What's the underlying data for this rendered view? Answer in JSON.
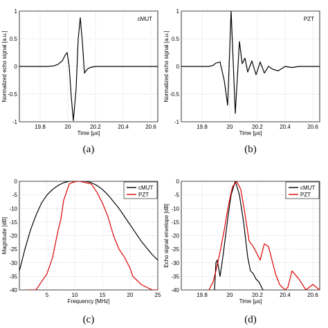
{
  "chart_data": [
    {
      "type": "line",
      "panel_label": "(a)",
      "xlabel": "Time [μs]",
      "ylabel": "Normalized echo signal [a.u.]",
      "xlim": [
        19.65,
        20.65
      ],
      "ylim": [
        -1,
        1
      ],
      "xticks": [
        "19.8",
        "20",
        "20.2",
        "20.4",
        "20.6"
      ],
      "yticks": [
        "-1",
        "-0.5",
        "0",
        "0.5",
        "1"
      ],
      "grid": true,
      "series": [
        {
          "name": "cMUT",
          "color": "#000000",
          "x": [
            19.65,
            19.85,
            19.9,
            19.93,
            19.96,
            19.98,
            19.995,
            20.01,
            20.025,
            20.04,
            20.06,
            20.075,
            20.09,
            20.105,
            20.12,
            20.14,
            20.16,
            20.2,
            20.3,
            20.65
          ],
          "y": [
            0,
            0,
            0.01,
            0.04,
            0.1,
            0.2,
            0.25,
            0.0,
            -0.55,
            -0.98,
            -0.4,
            0.5,
            0.88,
            0.45,
            -0.12,
            -0.05,
            -0.02,
            0.0,
            0.0,
            0.0
          ]
        }
      ]
    },
    {
      "type": "line",
      "panel_label": "(b)",
      "xlabel": "Time [μs]",
      "ylabel": "Normalized echo signal [a.u.]",
      "xlim": [
        19.65,
        20.65
      ],
      "ylim": [
        -1,
        1
      ],
      "xticks": [
        "19.8",
        "20",
        "20.2",
        "20.4",
        "20.6"
      ],
      "yticks": [
        "-1",
        "-0.5",
        "0",
        "0.5",
        "1"
      ],
      "grid": true,
      "series": [
        {
          "name": "PZT",
          "color": "#000000",
          "x": [
            19.65,
            19.85,
            19.88,
            19.9,
            19.93,
            19.96,
            19.985,
            20.01,
            20.04,
            20.07,
            20.09,
            20.11,
            20.13,
            20.16,
            20.19,
            20.22,
            20.25,
            20.28,
            20.31,
            20.35,
            20.4,
            20.45,
            20.5,
            20.55,
            20.65
          ],
          "y": [
            0,
            0,
            0.02,
            0.06,
            0.08,
            -0.25,
            -0.7,
            1.0,
            -0.85,
            0.45,
            0.05,
            0.15,
            -0.1,
            0.1,
            -0.15,
            0.08,
            -0.12,
            0.0,
            -0.05,
            -0.08,
            0.0,
            -0.02,
            0.0,
            0.0,
            0.0
          ]
        }
      ]
    },
    {
      "type": "line",
      "panel_label": "(c)",
      "xlabel": "Frequency [MHz]",
      "ylabel": "Magnitude [dB]",
      "xlim": [
        0,
        25
      ],
      "ylim": [
        -40,
        0
      ],
      "xticks": [
        "5",
        "10",
        "15",
        "20",
        "25"
      ],
      "yticks": [
        "-40",
        "-35",
        "-30",
        "-25",
        "-20",
        "-15",
        "-10",
        "-5",
        "0"
      ],
      "grid": true,
      "legend": "top-right",
      "series": [
        {
          "name": "cMUT",
          "color": "#000000",
          "x": [
            0,
            1,
            2,
            3,
            4,
            5,
            6,
            7,
            8,
            9,
            10,
            11,
            12,
            13,
            14,
            15,
            16,
            17,
            18,
            19,
            20,
            21,
            22,
            23,
            24,
            25
          ],
          "y": [
            -33,
            -25,
            -18,
            -12.5,
            -8,
            -5,
            -3,
            -1.5,
            -0.5,
            0,
            0,
            0,
            0,
            -0.5,
            -1.5,
            -3,
            -5,
            -7.5,
            -10,
            -13,
            -16,
            -19,
            -22,
            -24.5,
            -27,
            -29
          ]
        },
        {
          "name": "PZT",
          "color": "#dd0000",
          "x": [
            1.5,
            3,
            4,
            5,
            6,
            7,
            7.5,
            8,
            8.5,
            9,
            9.5,
            10,
            10.5,
            11,
            12,
            13,
            14,
            15,
            16,
            17,
            18,
            19,
            20,
            20.5,
            21,
            22,
            23,
            24,
            25
          ],
          "y": [
            -40,
            -40,
            -37,
            -34,
            -28,
            -18,
            -14,
            -7,
            -4,
            -1,
            -0.5,
            -0.2,
            0,
            0,
            -0.5,
            -1,
            -4,
            -8,
            -13,
            -20,
            -25,
            -28,
            -32,
            -35,
            -36,
            -38,
            -39,
            -40,
            -40
          ]
        }
      ]
    },
    {
      "type": "line",
      "panel_label": "(d)",
      "xlabel": "Time [μs]",
      "ylabel": "Echo signal envelope [dB]",
      "xlim": [
        19.65,
        20.65
      ],
      "ylim": [
        -40,
        0
      ],
      "xticks": [
        "19.8",
        "20",
        "20.2",
        "20.4",
        "20.6"
      ],
      "yticks": [
        "-40",
        "-35",
        "-30",
        "-25",
        "-20",
        "-15",
        "-10",
        "-5",
        "0"
      ],
      "grid": true,
      "legend": "top-right",
      "series": [
        {
          "name": "cMUT",
          "color": "#000000",
          "x": [
            19.89,
            19.9,
            19.91,
            19.93,
            19.95,
            19.97,
            19.99,
            20.01,
            20.04,
            20.07,
            20.1,
            20.13,
            20.15,
            20.17,
            20.19,
            20.21,
            20.24
          ],
          "y": [
            -40,
            -30,
            -29,
            -35,
            -28,
            -20,
            -12,
            -5,
            0,
            -5,
            -15,
            -28,
            -33,
            -34,
            -36,
            -37,
            -40
          ]
        },
        {
          "name": "PZT",
          "color": "#dd0000",
          "x": [
            19.85,
            19.88,
            19.9,
            19.93,
            19.96,
            19.99,
            20.02,
            20.05,
            20.08,
            20.11,
            20.14,
            20.17,
            20.2,
            20.22,
            20.25,
            20.28,
            20.3,
            20.33,
            20.36,
            20.4,
            20.42,
            20.45,
            20.5,
            20.55,
            20.6,
            20.65
          ],
          "y": [
            -40,
            -37,
            -33,
            -26,
            -18,
            -9,
            -2,
            0,
            -3,
            -12,
            -22,
            -24,
            -27,
            -29,
            -23,
            -24,
            -28,
            -34,
            -38,
            -40,
            -39,
            -33,
            -36,
            -40,
            -38,
            -40
          ]
        }
      ]
    }
  ]
}
